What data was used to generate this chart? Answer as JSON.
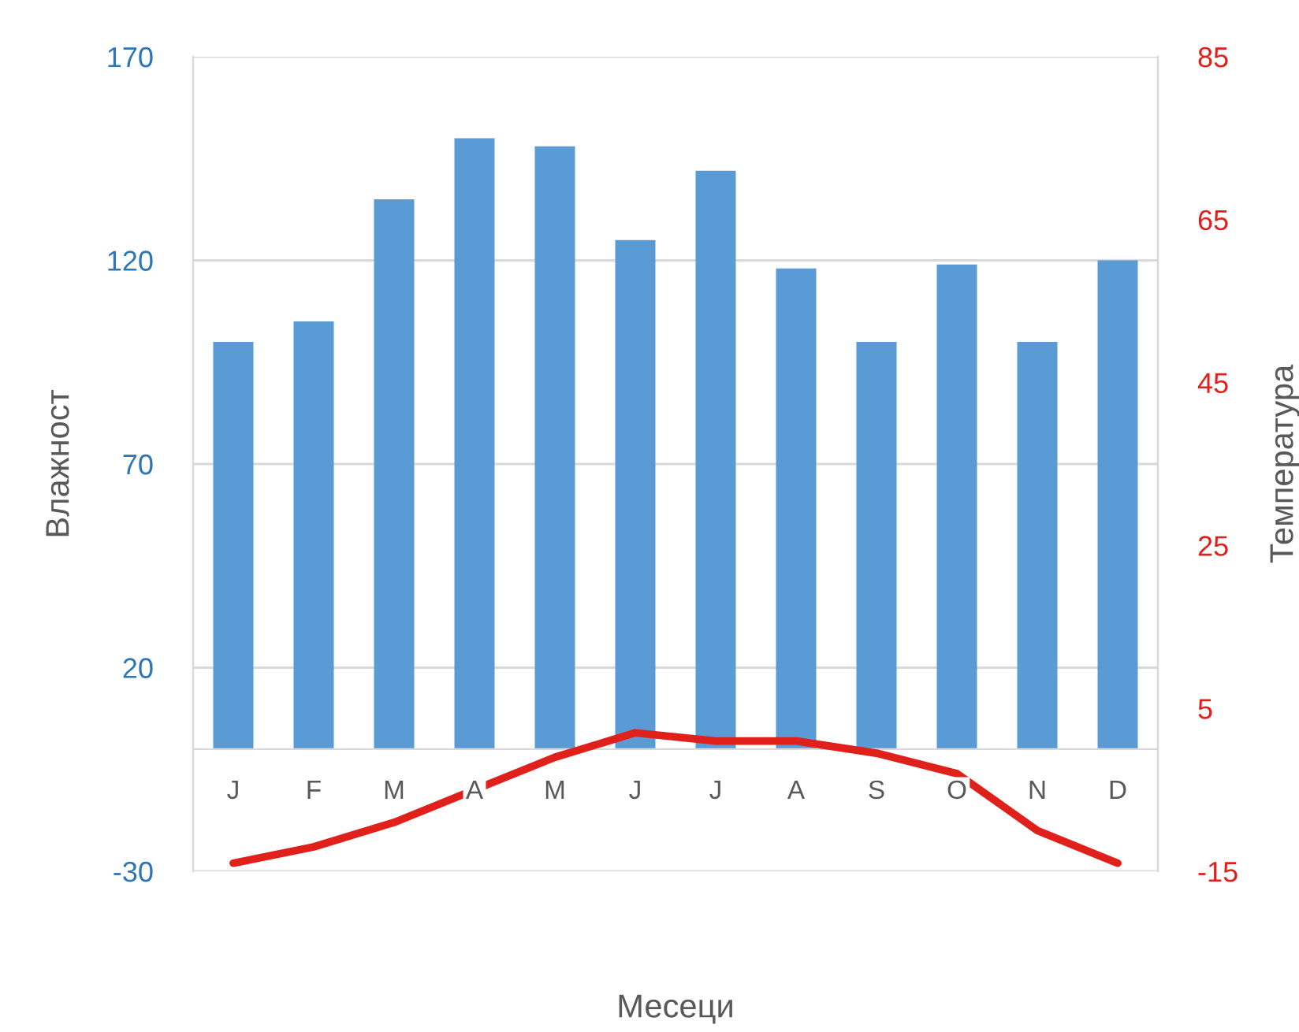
{
  "chart_data": {
    "type": "bar",
    "xlabel": "Месеци",
    "ylabel": "Влажност",
    "y2label": "Температура",
    "categories": [
      "J",
      "F",
      "M",
      "A",
      "M",
      "J",
      "J",
      "A",
      "S",
      "O",
      "N",
      "D"
    ],
    "series": [
      {
        "color": "#5b9bd5",
        "values": [
          100,
          105,
          135,
          150,
          148,
          125,
          142,
          118,
          100,
          119,
          100,
          120
        ]
      },
      {
        "type": "line",
        "axis": "y2",
        "color": "#e0201b",
        "line_style": "solid",
        "marker": "none",
        "values": [
          -14,
          -12,
          -9,
          -5,
          -1,
          2,
          1,
          1,
          -0.5,
          -3,
          -10,
          -14
        ]
      }
    ],
    "ylim": [
      -30,
      170
    ],
    "yticks": [
      -30,
      20,
      70,
      120,
      170
    ],
    "y2lim": [
      -15,
      85
    ],
    "y2ticks": [
      -15,
      5,
      25,
      45,
      65,
      85
    ],
    "grid": "y",
    "legend": false
  }
}
